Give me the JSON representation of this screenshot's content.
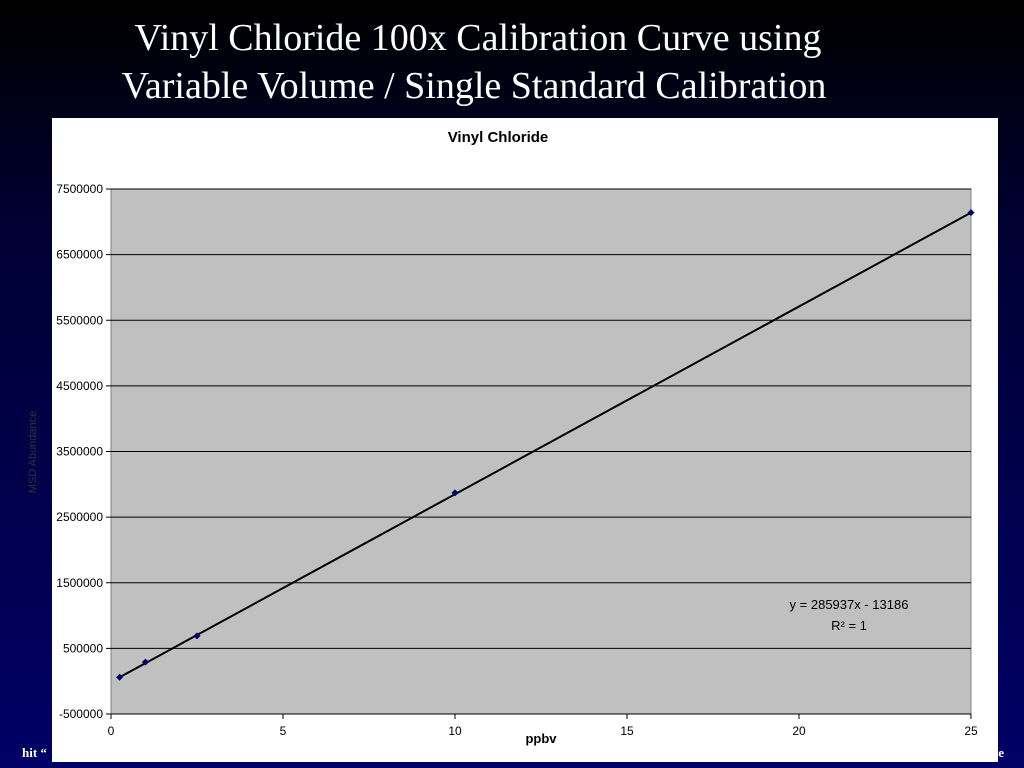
{
  "slide_title": [
    "Vinyl Chloride 100x Calibration Curve using",
    "Variable Volume / Single Standard Calibration"
  ],
  "footer_left": "hit “",
  "footer_right": "e",
  "chart_data": {
    "type": "scatter",
    "title": "Vinyl Chloride",
    "x_label": "ppbv",
    "y_label": "MSD Abundance",
    "x": [
      0.25,
      1,
      2.5,
      10,
      25
    ],
    "values": [
      60000,
      290000,
      690000,
      2870000,
      7140000
    ],
    "color": "#000066",
    "trendline_color": "#000000",
    "xlim": [
      0,
      25
    ],
    "xticks": [
      0,
      5,
      10,
      15,
      20,
      25
    ],
    "ylim": [
      -500000,
      7500000
    ],
    "yticks": [
      -500000,
      500000,
      1500000,
      2500000,
      3500000,
      4500000,
      5500000,
      6500000,
      7500000
    ],
    "grid": true,
    "trendline": true,
    "annotations": [
      "y = 285937x - 13186",
      "R² = 1"
    ]
  }
}
